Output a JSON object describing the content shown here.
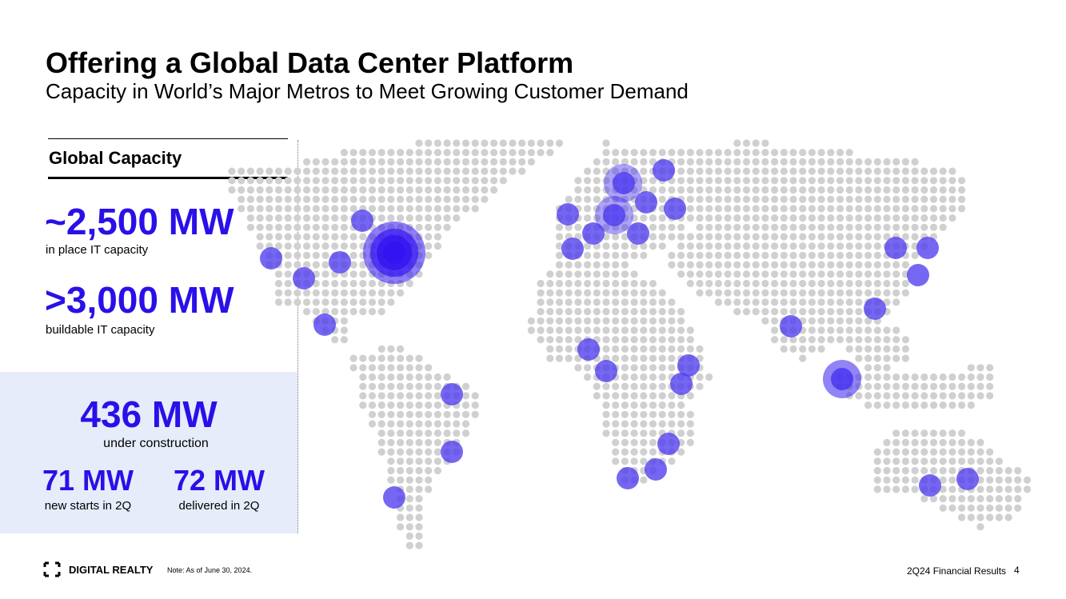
{
  "header": {
    "title": "Offering a Global Data Center Platform",
    "subtitle": "Capacity in World’s Major Metros to Meet Growing Customer Demand"
  },
  "capacity": {
    "heading": "Global Capacity",
    "stats": [
      {
        "value": "~2,500 MW",
        "label": "in place IT capacity"
      },
      {
        "value": ">3,000 MW",
        "label": "buildable IT capacity"
      }
    ]
  },
  "construction": {
    "value": "436 MW",
    "label": "under construction",
    "stats": [
      {
        "value": "71 MW",
        "label": "new starts in 2Q"
      },
      {
        "value": "72 MW",
        "label": "delivered in 2Q"
      }
    ]
  },
  "footer": {
    "brand": "DIGITAL REALTY",
    "note": "Note: As of June 30, 2024.",
    "deck": "2Q24 Financial Results",
    "page": 4
  }
}
